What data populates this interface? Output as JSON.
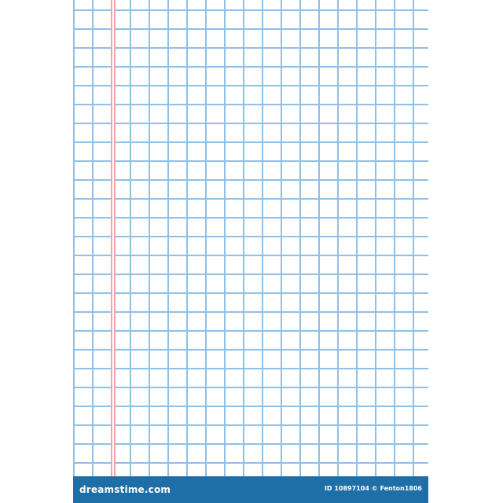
{
  "paper": {
    "style": "graph-paper",
    "grid_color": "#8fc0e8",
    "margin_line_color": "#f3a3a3",
    "background_color": "#ffffff"
  },
  "footer": {
    "background_color": "#1e6fa8",
    "brand": "dreamstime.com",
    "credit": "ID 10897104 © Fenton1806"
  }
}
